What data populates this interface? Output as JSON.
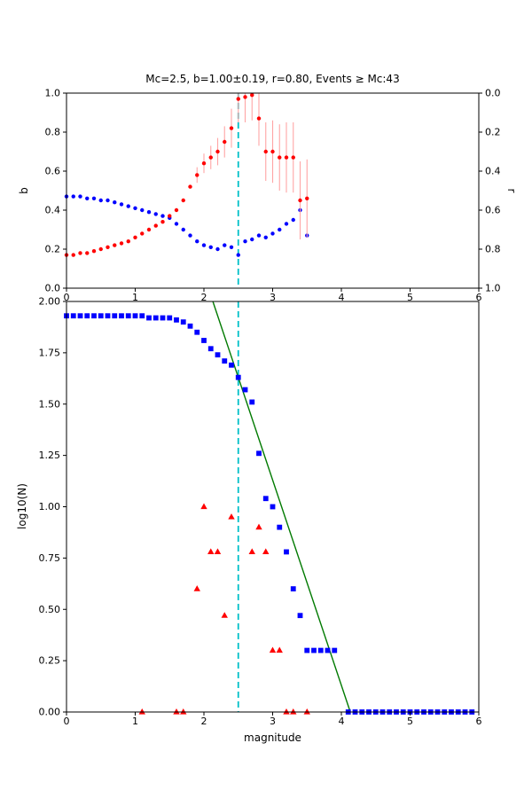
{
  "figure": {
    "background": "#ffffff",
    "accent_colors": {
      "blue_marker": "#0000ff",
      "red_marker": "#ff0000",
      "error_bar": "#ffa5a5",
      "mc_line": "#00bfc8",
      "fit_line": "#007a00"
    }
  },
  "chart_data": [
    {
      "type": "scatter",
      "title": "Mc=2.5, b=1.00±0.19, r=0.80, Events ≥ Mc:43",
      "xlabel": "",
      "ylabel": "b",
      "y2label": "r",
      "xlim": [
        0,
        6
      ],
      "xticks": [
        0,
        1,
        2,
        3,
        4,
        5,
        6
      ],
      "xtick_labels": [
        "0",
        "1",
        "2",
        "3",
        "4",
        "5",
        "6"
      ],
      "ylim": [
        0,
        1
      ],
      "yticks": [
        0,
        0.2,
        0.4,
        0.6,
        0.8,
        1.0
      ],
      "ytick_labels": [
        "0.0",
        "0.2",
        "0.4",
        "0.6",
        "0.8",
        "1.0"
      ],
      "y2lim": [
        0,
        1
      ],
      "y2_inverted": true,
      "y2ticks": [
        0,
        0.2,
        0.4,
        0.6,
        0.8,
        1.0
      ],
      "y2tick_labels": [
        "0.0",
        "0.2",
        "0.4",
        "0.6",
        "0.8",
        "1.0"
      ],
      "grid": false,
      "vline": {
        "x": 2.5,
        "color": "#00bfc8",
        "style": "dashed",
        "width": 1.8
      },
      "series": [
        {
          "name": "b-value",
          "axis": "left",
          "marker": "circle",
          "color": "#0000ff",
          "x": [
            0.0,
            0.1,
            0.2,
            0.3,
            0.4,
            0.5,
            0.6,
            0.7,
            0.8,
            0.9,
            1.0,
            1.1,
            1.2,
            1.3,
            1.4,
            1.5,
            1.6,
            1.7,
            1.8,
            1.9,
            2.0,
            2.1,
            2.2,
            2.3,
            2.4,
            2.5,
            2.6,
            2.7,
            2.8,
            2.9,
            3.0,
            3.1,
            3.2,
            3.3,
            3.4,
            3.5
          ],
          "y": [
            0.47,
            0.47,
            0.47,
            0.46,
            0.46,
            0.45,
            0.45,
            0.44,
            0.43,
            0.42,
            0.41,
            0.4,
            0.39,
            0.38,
            0.37,
            0.36,
            0.33,
            0.3,
            0.27,
            0.24,
            0.22,
            0.21,
            0.2,
            0.22,
            0.21,
            0.17,
            0.24,
            0.25,
            0.27,
            0.26,
            0.28,
            0.3,
            0.33,
            0.35,
            0.4,
            0.27
          ]
        },
        {
          "name": "r-value",
          "axis": "right",
          "marker": "circle",
          "color": "#ff0000",
          "error_color": "#ffa5a5",
          "x": [
            0.0,
            0.1,
            0.2,
            0.3,
            0.4,
            0.5,
            0.6,
            0.7,
            0.8,
            0.9,
            1.0,
            1.1,
            1.2,
            1.3,
            1.4,
            1.5,
            1.6,
            1.7,
            1.8,
            1.9,
            2.0,
            2.1,
            2.2,
            2.3,
            2.4,
            2.5,
            2.6,
            2.7,
            2.8,
            2.9,
            3.0,
            3.1,
            3.2,
            3.3,
            3.4,
            3.5
          ],
          "y": [
            0.83,
            0.83,
            0.82,
            0.82,
            0.81,
            0.8,
            0.79,
            0.78,
            0.77,
            0.76,
            0.74,
            0.72,
            0.7,
            0.68,
            0.66,
            0.63,
            0.6,
            0.55,
            0.48,
            0.42,
            0.36,
            0.33,
            0.3,
            0.25,
            0.18,
            0.03,
            0.02,
            0.01,
            0.13,
            0.3,
            0.3,
            0.33,
            0.33,
            0.33,
            0.55,
            0.54
          ],
          "yerr": [
            0,
            0,
            0,
            0,
            0,
            0,
            0,
            0,
            0,
            0,
            0,
            0,
            0,
            0,
            0,
            0,
            0,
            0,
            0,
            0.04,
            0.05,
            0.06,
            0.07,
            0.08,
            0.1,
            0.12,
            0.13,
            0.13,
            0.14,
            0.15,
            0.16,
            0.17,
            0.18,
            0.18,
            0.2,
            0.2
          ]
        }
      ]
    },
    {
      "type": "scatter",
      "title": "",
      "xlabel": "magnitude",
      "ylabel": "log10(N)",
      "xlim": [
        0,
        6
      ],
      "xticks": [
        0,
        1,
        2,
        3,
        4,
        5,
        6
      ],
      "xtick_labels": [
        "0",
        "1",
        "2",
        "3",
        "4",
        "5",
        "6"
      ],
      "ylim": [
        0,
        2
      ],
      "yticks": [
        0,
        0.25,
        0.5,
        0.75,
        1.0,
        1.25,
        1.5,
        1.75,
        2.0
      ],
      "ytick_labels": [
        "0.00",
        "0.25",
        "0.50",
        "0.75",
        "1.00",
        "1.25",
        "1.50",
        "1.75",
        "2.00"
      ],
      "grid": false,
      "vline": {
        "x": 2.5,
        "color": "#00bfc8",
        "style": "dashed",
        "width": 1.8
      },
      "fit_line": {
        "name": "gutenberg-richter-fit",
        "color": "#007a00",
        "x": [
          2.13,
          4.13
        ],
        "y": [
          2.0,
          0.0
        ]
      },
      "series": [
        {
          "name": "cumulative-counts",
          "axis": "left",
          "marker": "square",
          "color": "#0000ff",
          "x": [
            0.0,
            0.1,
            0.2,
            0.3,
            0.4,
            0.5,
            0.6,
            0.7,
            0.8,
            0.9,
            1.0,
            1.1,
            1.2,
            1.3,
            1.4,
            1.5,
            1.6,
            1.7,
            1.8,
            1.9,
            2.0,
            2.1,
            2.2,
            2.3,
            2.4,
            2.5,
            2.6,
            2.7,
            2.8,
            2.9,
            3.0,
            3.1,
            3.2,
            3.3,
            3.4,
            3.5,
            3.6,
            3.7,
            3.8,
            3.9,
            4.1,
            4.2,
            4.3,
            4.4,
            4.5,
            4.6,
            4.7,
            4.8,
            4.9,
            5.0,
            5.1,
            5.2,
            5.3,
            5.4,
            5.5,
            5.6,
            5.7,
            5.8,
            5.9
          ],
          "y": [
            1.93,
            1.93,
            1.93,
            1.93,
            1.93,
            1.93,
            1.93,
            1.93,
            1.93,
            1.93,
            1.93,
            1.93,
            1.92,
            1.92,
            1.92,
            1.92,
            1.91,
            1.9,
            1.88,
            1.85,
            1.81,
            1.77,
            1.74,
            1.71,
            1.69,
            1.63,
            1.57,
            1.51,
            1.26,
            1.04,
            1.0,
            0.9,
            0.78,
            0.6,
            0.47,
            0.3,
            0.3,
            0.3,
            0.3,
            0.3,
            0.0,
            0.0,
            0.0,
            0.0,
            0.0,
            0.0,
            0.0,
            0.0,
            0.0,
            0.0,
            0.0,
            0.0,
            0.0,
            0.0,
            0.0,
            0.0,
            0.0,
            0.0,
            0.0
          ]
        },
        {
          "name": "bin-counts",
          "axis": "left",
          "marker": "triangle",
          "color": "#ff0000",
          "x": [
            1.1,
            1.6,
            1.7,
            1.9,
            2.0,
            2.1,
            2.2,
            2.3,
            2.4,
            2.7,
            2.8,
            2.9,
            3.0,
            3.1,
            3.2,
            3.3,
            3.5
          ],
          "y": [
            0.0,
            0.0,
            0.0,
            0.6,
            1.0,
            0.78,
            0.78,
            0.47,
            0.95,
            0.78,
            0.9,
            0.78,
            0.3,
            0.3,
            0.0,
            0.0,
            0.0
          ]
        }
      ]
    }
  ]
}
